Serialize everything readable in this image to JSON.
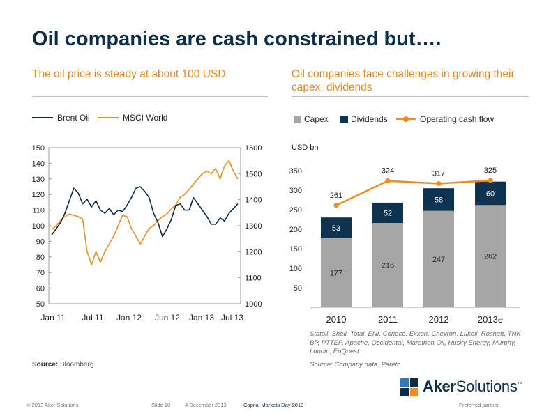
{
  "title": "Oil companies are cash constrained but….",
  "left_panel": {
    "subtitle": "The oil price is steady at about 100 USD",
    "source_label": "Source:",
    "source_text": "Bloomberg"
  },
  "right_panel": {
    "subtitle": "Oil companies face challenges in growing their capex, dividends",
    "note": "Statoil, Shell, Total, ENI, Conoco, Exxon, Chevron, Lukoil, Rosneft, TNK-BP, PTTEP, Apache, Occidental, Marathon Oil, Husky Energy, Murphy, Lundin, EnQuest",
    "source_text": "Source: Company data, Pareto"
  },
  "colors": {
    "brent": "#0d2b45",
    "msci": "#f28c1e",
    "capex": "#a6a6a6",
    "dividends": "#0d3350",
    "ocf": "#f28c1e",
    "title": "#0b2d4a",
    "accent": "#e8871e"
  },
  "chart_data": [
    {
      "type": "line",
      "x_ticks": [
        "Jan 11",
        "Jul 11",
        "Jan 12",
        "Jun 12",
        "Jan 13",
        "Jul 13"
      ],
      "y_left": {
        "min": 50,
        "max": 150,
        "ticks": [
          50,
          60,
          70,
          80,
          90,
          100,
          110,
          120,
          130,
          140,
          150
        ]
      },
      "y_right": {
        "min": 1000,
        "max": 1600,
        "ticks": [
          1000,
          1100,
          1200,
          1300,
          1400,
          1500,
          1600
        ]
      },
      "legend_placement": "top",
      "grid": false,
      "series": [
        {
          "name": "Brent Oil",
          "axis": "left",
          "values": [
            94,
            98,
            102,
            108,
            116,
            124,
            121,
            114,
            117,
            112,
            116,
            110,
            108,
            111,
            107,
            110,
            109,
            113,
            118,
            124,
            125,
            122,
            118,
            108,
            102,
            93,
            98,
            104,
            113,
            114,
            110,
            110,
            118,
            114,
            110,
            106,
            101,
            101,
            105,
            103,
            108,
            111,
            114
          ]
        },
        {
          "name": "MSCI World",
          "axis": "right",
          "values": [
            1285,
            1300,
            1320,
            1335,
            1345,
            1340,
            1335,
            1325,
            1200,
            1150,
            1200,
            1160,
            1200,
            1230,
            1260,
            1300,
            1340,
            1335,
            1290,
            1260,
            1230,
            1260,
            1290,
            1300,
            1320,
            1335,
            1345,
            1365,
            1380,
            1410,
            1420,
            1440,
            1460,
            1480,
            1500,
            1510,
            1500,
            1520,
            1480,
            1530,
            1550,
            1510,
            1480
          ]
        }
      ]
    },
    {
      "type": "bar",
      "stacked": true,
      "unit_label": "USD bn",
      "categories": [
        "2010",
        "2011",
        "2012",
        "2013e"
      ],
      "ylim": [
        0,
        350
      ],
      "y_ticks": [
        50,
        100,
        150,
        200,
        250,
        300,
        350
      ],
      "legend_placement": "top",
      "grid": false,
      "series": [
        {
          "name": "Capex",
          "values": [
            177,
            216,
            247,
            262
          ]
        },
        {
          "name": "Dividends",
          "values": [
            53,
            52,
            58,
            60
          ]
        },
        {
          "name": "Operating cash flow",
          "type": "line",
          "values": [
            261,
            324,
            317,
            325
          ]
        }
      ]
    }
  ],
  "logo": {
    "part1": "Aker",
    "part2": "Solutions",
    "tm": "™"
  },
  "footer": {
    "copyright": "© 2013 Aker Solutions",
    "slide": "Slide 10",
    "date": "4 December 2013",
    "event": "Capital Markets Day 2013",
    "tagline": "Preferred partner"
  }
}
